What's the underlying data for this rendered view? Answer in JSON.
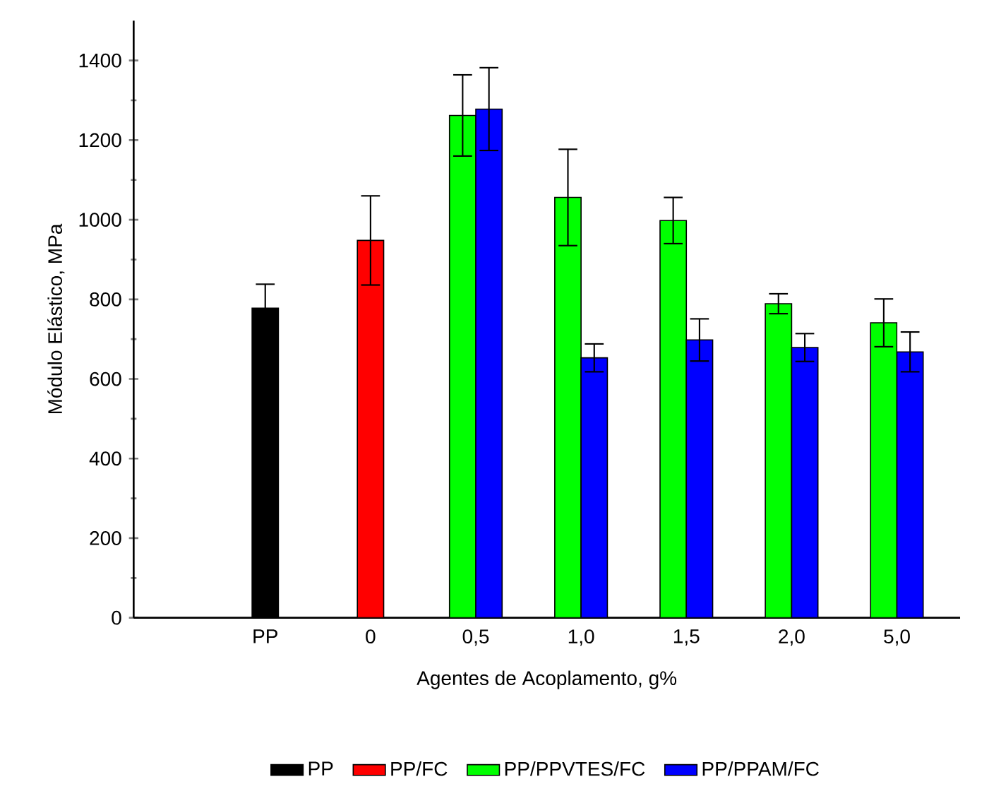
{
  "chart_data": {
    "type": "bar",
    "xlabel": "Agentes de Acoplamento, g%",
    "ylabel": "Módulo Elástico, MPa",
    "categories": [
      "PP",
      "0",
      "0,5",
      "1,0",
      "1,5",
      "2,0",
      "5,0"
    ],
    "series": [
      {
        "name": "PP",
        "color": "#000000",
        "values": [
          778,
          null,
          null,
          null,
          null,
          null,
          null
        ],
        "errors": [
          60,
          null,
          null,
          null,
          null,
          null,
          null
        ]
      },
      {
        "name": "PP/FC",
        "color": "#ff0000",
        "values": [
          null,
          948,
          null,
          null,
          null,
          null,
          null
        ],
        "errors": [
          null,
          112,
          null,
          null,
          null,
          null,
          null
        ]
      },
      {
        "name": "PP/PPVTES/FC",
        "color": "#00ff00",
        "values": [
          null,
          null,
          1262,
          1056,
          998,
          789,
          741
        ],
        "errors": [
          null,
          null,
          102,
          121,
          58,
          25,
          60
        ]
      },
      {
        "name": "PP/PPAM/FC",
        "color": "#0000ff",
        "values": [
          null,
          null,
          1278,
          653,
          698,
          679,
          668
        ],
        "errors": [
          null,
          null,
          104,
          35,
          53,
          35,
          50
        ]
      }
    ],
    "ylim": [
      0,
      1500
    ],
    "yticks": [
      0,
      200,
      400,
      600,
      800,
      1000,
      1200,
      1400
    ],
    "legend": "bottom"
  }
}
